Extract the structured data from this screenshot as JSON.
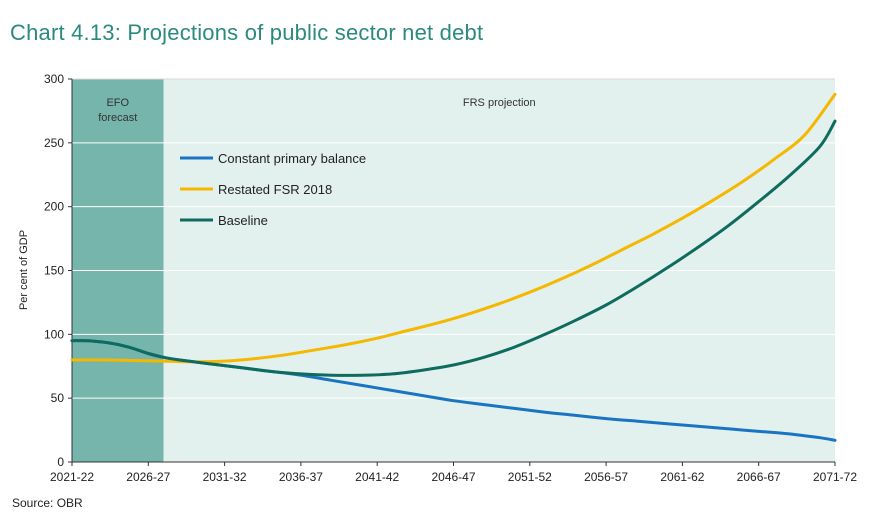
{
  "title": "Chart 4.13: Projections of public sector net debt",
  "source": "Source: OBR",
  "chart_data": {
    "type": "line",
    "ylabel": "Per cent of GDP",
    "ylim": [
      0,
      300
    ],
    "yticks": [
      0,
      50,
      100,
      150,
      200,
      250,
      300
    ],
    "xticks": [
      "2021-22",
      "2026-27",
      "2031-32",
      "2036-37",
      "2041-42",
      "2046-47",
      "2051-52",
      "2056-57",
      "2061-62",
      "2066-67",
      "2071-72"
    ],
    "xlim": [
      2021,
      2071
    ],
    "regions": [
      {
        "label_lines": [
          "EFO",
          "forecast"
        ],
        "x_start": 2021,
        "x_end": 2027,
        "color": "#76b5ac"
      },
      {
        "label_lines": [
          "FRS projection"
        ],
        "x_start": 2027,
        "x_end": 2071,
        "color": "#e2f1ee"
      }
    ],
    "legend_position": "top-left",
    "series": [
      {
        "name": "Constant primary balance",
        "color": "#1a74c2",
        "x": [
          2021,
          2022,
          2023,
          2024,
          2025,
          2026,
          2027,
          2028,
          2030,
          2032,
          2034,
          2036,
          2038,
          2040,
          2042,
          2044,
          2046,
          2048,
          2050,
          2052,
          2054,
          2056,
          2058,
          2060,
          2062,
          2064,
          2066,
          2068,
          2070,
          2071
        ],
        "y": [
          95,
          95,
          94,
          92,
          89,
          85,
          82,
          80,
          77,
          74,
          71,
          68,
          64,
          60,
          56,
          52,
          48,
          45,
          42,
          39,
          36.5,
          34,
          32,
          30,
          28,
          26,
          24,
          22,
          19,
          17
        ]
      },
      {
        "name": "Restated FSR 2018",
        "color": "#f5b700",
        "x": [
          2021,
          2023,
          2025,
          2027,
          2029,
          2031,
          2033,
          2035,
          2037,
          2039,
          2041,
          2043,
          2045,
          2047,
          2049,
          2051,
          2053,
          2055,
          2057,
          2059,
          2061,
          2063,
          2065,
          2067,
          2069,
          2071
        ],
        "y": [
          80,
          80,
          79.5,
          79,
          78.5,
          79,
          81,
          84,
          88,
          92,
          97,
          103,
          109,
          116,
          124,
          133,
          143,
          154,
          166,
          178,
          191,
          205,
          220,
          237,
          256,
          288
        ]
      },
      {
        "name": "Baseline",
        "color": "#0f6b5e",
        "x": [
          2021,
          2022,
          2023,
          2024,
          2025,
          2026,
          2027,
          2028,
          2030,
          2032,
          2034,
          2036,
          2038,
          2040,
          2042,
          2044,
          2046,
          2048,
          2050,
          2052,
          2054,
          2056,
          2058,
          2060,
          2062,
          2064,
          2066,
          2068,
          2070,
          2071
        ],
        "y": [
          95,
          95,
          94,
          92,
          89,
          85,
          82,
          80,
          77,
          74,
          71,
          69,
          68,
          68,
          69,
          72,
          76,
          82,
          90,
          100,
          111,
          123,
          137,
          152,
          168,
          185,
          204,
          224,
          247,
          267
        ]
      }
    ]
  }
}
